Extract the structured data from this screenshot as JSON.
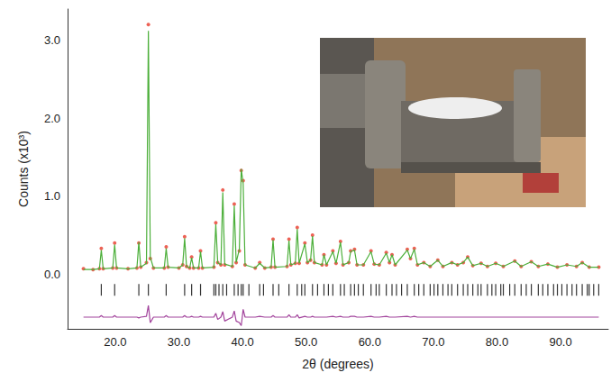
{
  "chart_data": {
    "type": "line",
    "x_label": "2θ (degrees)",
    "y_label": "Counts (x10³)",
    "xlim": [
      12.5,
      97.5
    ],
    "ylim": [
      -0.7,
      3.4
    ],
    "xticks": [
      {
        "value": 20,
        "label": "20.0"
      },
      {
        "value": 30,
        "label": "30.0"
      },
      {
        "value": 40,
        "label": "40.0"
      },
      {
        "value": 50,
        "label": "50.0"
      },
      {
        "value": 60,
        "label": "60.0"
      },
      {
        "value": 70,
        "label": "70.0"
      },
      {
        "value": 80,
        "label": "80.0"
      },
      {
        "value": 90,
        "label": "90.0"
      }
    ],
    "yticks": [
      {
        "value": 0,
        "label": "0.0"
      },
      {
        "value": 1,
        "label": "1.0"
      },
      {
        "value": 2,
        "label": "2.0"
      },
      {
        "value": 3,
        "label": "3.0"
      }
    ],
    "grid": false,
    "x": [
      15.0,
      16.5,
      17.5,
      17.8,
      18.1,
      19.6,
      19.9,
      20.2,
      22.0,
      23.4,
      23.7,
      24.0,
      24.9,
      25.2,
      25.5,
      26.0,
      27.7,
      28.0,
      28.3,
      30.0,
      30.6,
      30.9,
      31.2,
      31.7,
      32.0,
      32.3,
      33.1,
      33.4,
      33.7,
      35.5,
      35.8,
      36.1,
      36.6,
      36.9,
      37.2,
      38.4,
      38.7,
      39.0,
      39.5,
      39.8,
      40.1,
      40.4,
      42.0,
      42.7,
      43.5,
      44.5,
      44.8,
      45.1,
      47.0,
      47.3,
      47.6,
      48.3,
      48.6,
      48.9,
      49.8,
      50.2,
      50.7,
      51.0,
      51.3,
      52.5,
      52.8,
      53.2,
      54.2,
      54.7,
      55.4,
      55.8,
      56.7,
      57.0,
      57.6,
      58.0,
      59.0,
      60.2,
      60.7,
      61.5,
      62.6,
      63.1,
      63.5,
      64.0,
      65.9,
      66.4,
      67.0,
      67.5,
      68.5,
      69.5,
      70.7,
      71.5,
      72.9,
      73.8,
      74.7,
      75.4,
      76.2,
      77.5,
      78.5,
      79.8,
      81.0,
      82.8,
      83.8,
      85.4,
      86.5,
      88.0,
      89.5,
      91.0,
      92.5,
      93.4,
      94.5,
      96.0
    ],
    "series": [
      {
        "type": "scatter",
        "marker": "circle",
        "color": "#e8392b",
        "values": [
          0.07,
          0.06,
          0.07,
          0.33,
          0.07,
          0.08,
          0.4,
          0.08,
          0.07,
          0.08,
          0.4,
          0.09,
          0.15,
          3.2,
          0.2,
          0.08,
          0.08,
          0.35,
          0.09,
          0.08,
          0.12,
          0.48,
          0.1,
          0.08,
          0.22,
          0.08,
          0.08,
          0.3,
          0.08,
          0.09,
          0.66,
          0.15,
          0.12,
          1.08,
          0.12,
          0.1,
          0.9,
          0.15,
          0.3,
          1.33,
          1.2,
          0.12,
          0.08,
          0.15,
          0.08,
          0.09,
          0.45,
          0.09,
          0.1,
          0.45,
          0.12,
          0.14,
          0.6,
          0.14,
          0.4,
          0.15,
          0.18,
          0.5,
          0.15,
          0.12,
          0.25,
          0.12,
          0.3,
          0.14,
          0.42,
          0.12,
          0.15,
          0.3,
          0.32,
          0.12,
          0.12,
          0.3,
          0.13,
          0.12,
          0.28,
          0.15,
          0.25,
          0.12,
          0.32,
          0.2,
          0.33,
          0.12,
          0.15,
          0.1,
          0.18,
          0.1,
          0.15,
          0.12,
          0.15,
          0.22,
          0.11,
          0.14,
          0.1,
          0.14,
          0.1,
          0.17,
          0.1,
          0.16,
          0.1,
          0.13,
          0.09,
          0.12,
          0.1,
          0.15,
          0.09,
          0.09
        ]
      },
      {
        "type": "line",
        "line_style": "solid",
        "color": "#4caf3a",
        "values": [
          0.06,
          0.06,
          0.07,
          0.31,
          0.07,
          0.08,
          0.38,
          0.08,
          0.07,
          0.08,
          0.41,
          0.09,
          0.14,
          3.12,
          0.22,
          0.08,
          0.08,
          0.33,
          0.09,
          0.08,
          0.12,
          0.46,
          0.1,
          0.08,
          0.21,
          0.08,
          0.08,
          0.29,
          0.08,
          0.09,
          0.64,
          0.15,
          0.12,
          1.05,
          0.13,
          0.1,
          0.88,
          0.15,
          0.32,
          1.35,
          1.16,
          0.12,
          0.08,
          0.14,
          0.08,
          0.09,
          0.44,
          0.09,
          0.1,
          0.43,
          0.12,
          0.14,
          0.58,
          0.14,
          0.39,
          0.15,
          0.18,
          0.49,
          0.15,
          0.12,
          0.25,
          0.12,
          0.29,
          0.14,
          0.41,
          0.12,
          0.15,
          0.29,
          0.31,
          0.12,
          0.12,
          0.29,
          0.13,
          0.12,
          0.27,
          0.15,
          0.25,
          0.12,
          0.31,
          0.2,
          0.32,
          0.12,
          0.15,
          0.1,
          0.18,
          0.1,
          0.15,
          0.12,
          0.15,
          0.22,
          0.11,
          0.14,
          0.1,
          0.14,
          0.1,
          0.17,
          0.1,
          0.16,
          0.1,
          0.13,
          0.09,
          0.12,
          0.1,
          0.15,
          0.09,
          0.09
        ]
      },
      {
        "type": "line",
        "line_style": "solid",
        "color": "#a2449c",
        "values": [
          -0.55,
          -0.55,
          -0.55,
          -0.53,
          -0.55,
          -0.55,
          -0.53,
          -0.55,
          -0.55,
          -0.55,
          -0.56,
          -0.55,
          -0.54,
          -0.4,
          -0.62,
          -0.55,
          -0.55,
          -0.53,
          -0.55,
          -0.55,
          -0.55,
          -0.53,
          -0.55,
          -0.55,
          -0.54,
          -0.55,
          -0.55,
          -0.54,
          -0.55,
          -0.55,
          -0.5,
          -0.58,
          -0.55,
          -0.48,
          -0.6,
          -0.55,
          -0.47,
          -0.6,
          -0.62,
          -0.66,
          -0.45,
          -0.55,
          -0.55,
          -0.54,
          -0.55,
          -0.55,
          -0.53,
          -0.55,
          -0.55,
          -0.52,
          -0.55,
          -0.55,
          -0.52,
          -0.56,
          -0.54,
          -0.55,
          -0.55,
          -0.54,
          -0.55,
          -0.55,
          -0.55,
          -0.55,
          -0.54,
          -0.55,
          -0.54,
          -0.55,
          -0.55,
          -0.54,
          -0.54,
          -0.55,
          -0.55,
          -0.54,
          -0.55,
          -0.55,
          -0.54,
          -0.55,
          -0.55,
          -0.55,
          -0.54,
          -0.55,
          -0.54,
          -0.55,
          -0.55,
          -0.55,
          -0.55,
          -0.55,
          -0.55,
          -0.55,
          -0.55,
          -0.55,
          -0.55,
          -0.55,
          -0.55,
          -0.55,
          -0.55,
          -0.55,
          -0.55,
          -0.55,
          -0.55,
          -0.55,
          -0.55,
          -0.55,
          -0.55,
          -0.55,
          -0.55,
          -0.55
        ]
      },
      {
        "type": "scatter",
        "marker": "vline",
        "color": "#000000",
        "x": [
          17.8,
          19.9,
          23.7,
          25.2,
          28.0,
          30.9,
          32.0,
          33.4,
          35.5,
          35.8,
          36.3,
          36.9,
          37.5,
          38.7,
          39.3,
          39.8,
          40.1,
          41.0,
          42.7,
          43.3,
          44.8,
          45.7,
          47.3,
          48.6,
          49.3,
          49.8,
          51.0,
          51.8,
          52.8,
          53.5,
          54.2,
          55.4,
          56.0,
          57.0,
          57.6,
          58.2,
          59.0,
          60.2,
          61.0,
          61.5,
          62.6,
          63.5,
          64.2,
          65.0,
          65.9,
          67.0,
          67.7,
          68.5,
          69.5,
          70.1,
          70.7,
          71.5,
          72.3,
          72.9,
          73.8,
          74.7,
          75.4,
          76.2,
          77.0,
          77.5,
          78.5,
          79.2,
          79.8,
          80.6,
          81.0,
          82.0,
          82.8,
          83.8,
          84.6,
          85.4,
          86.5,
          87.2,
          88.0,
          88.9,
          89.5,
          90.2,
          91.0,
          91.8,
          92.5,
          93.4,
          94.2,
          94.5,
          95.2,
          96.0
        ],
        "values": [
          -0.2,
          -0.2,
          -0.2,
          -0.2,
          -0.2,
          -0.2,
          -0.2,
          -0.2,
          -0.2,
          -0.2,
          -0.2,
          -0.2,
          -0.2,
          -0.2,
          -0.2,
          -0.2,
          -0.2,
          -0.2,
          -0.2,
          -0.2,
          -0.2,
          -0.2,
          -0.2,
          -0.2,
          -0.2,
          -0.2,
          -0.2,
          -0.2,
          -0.2,
          -0.2,
          -0.2,
          -0.2,
          -0.2,
          -0.2,
          -0.2,
          -0.2,
          -0.2,
          -0.2,
          -0.2,
          -0.2,
          -0.2,
          -0.2,
          -0.2,
          -0.2,
          -0.2,
          -0.2,
          -0.2,
          -0.2,
          -0.2,
          -0.2,
          -0.2,
          -0.2,
          -0.2,
          -0.2,
          -0.2,
          -0.2,
          -0.2,
          -0.2,
          -0.2,
          -0.2,
          -0.2,
          -0.2,
          -0.2,
          -0.2,
          -0.2,
          -0.2,
          -0.2,
          -0.2,
          -0.2,
          -0.2,
          -0.2,
          -0.2,
          -0.2,
          -0.2,
          -0.2,
          -0.2,
          -0.2,
          -0.2,
          -0.2,
          -0.2,
          -0.2,
          -0.2,
          -0.2,
          -0.2
        ]
      }
    ]
  }
}
